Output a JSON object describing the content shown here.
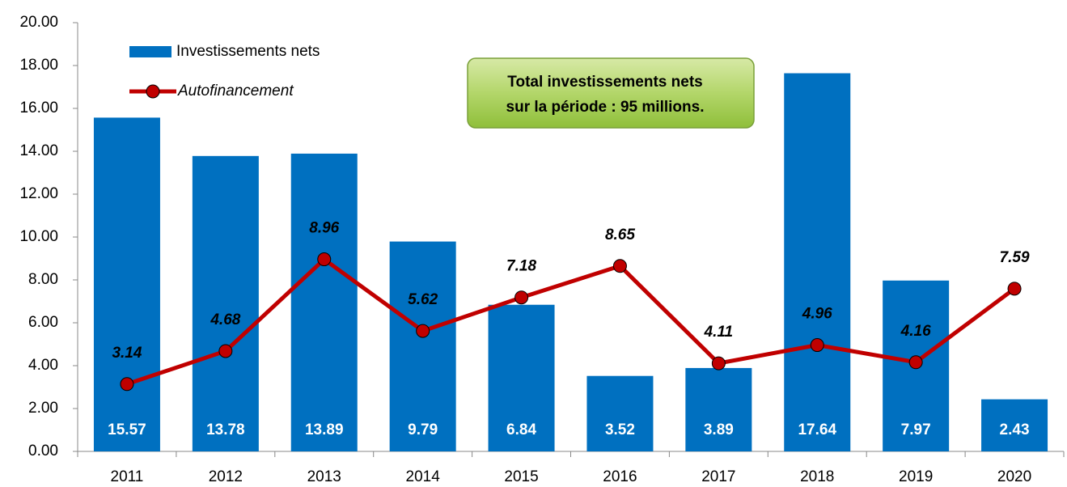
{
  "chart_data": {
    "type": "bar",
    "categories": [
      "2011",
      "2012",
      "2013",
      "2014",
      "2015",
      "2016",
      "2017",
      "2018",
      "2019",
      "2020"
    ],
    "series": [
      {
        "name": "Investissements nets",
        "type": "bar",
        "color": "#0070c0",
        "values": [
          15.57,
          13.78,
          13.89,
          9.79,
          6.84,
          3.52,
          3.89,
          17.64,
          7.97,
          2.43
        ]
      },
      {
        "name": "Autofinancement",
        "type": "line",
        "color": "#c00000",
        "values": [
          3.14,
          4.68,
          8.96,
          5.62,
          7.18,
          8.65,
          4.11,
          4.96,
          4.16,
          7.59
        ]
      }
    ],
    "ylim": [
      0,
      20
    ],
    "yticks": [
      {
        "value": 0,
        "label": "0.00"
      },
      {
        "value": 2,
        "label": "2.00"
      },
      {
        "value": 4,
        "label": "4.00"
      },
      {
        "value": 6,
        "label": "6.00"
      },
      {
        "value": 8,
        "label": "8.00"
      },
      {
        "value": 10,
        "label": "10.00"
      },
      {
        "value": 12,
        "label": "12.00"
      },
      {
        "value": 14,
        "label": "14.00"
      },
      {
        "value": 16,
        "label": "16.00"
      },
      {
        "value": 18,
        "label": "18.00"
      },
      {
        "value": 20,
        "label": "20.00"
      }
    ],
    "annotation": [
      "Total investissements nets",
      "sur la période : 95 millions."
    ],
    "legend": "upper left"
  }
}
